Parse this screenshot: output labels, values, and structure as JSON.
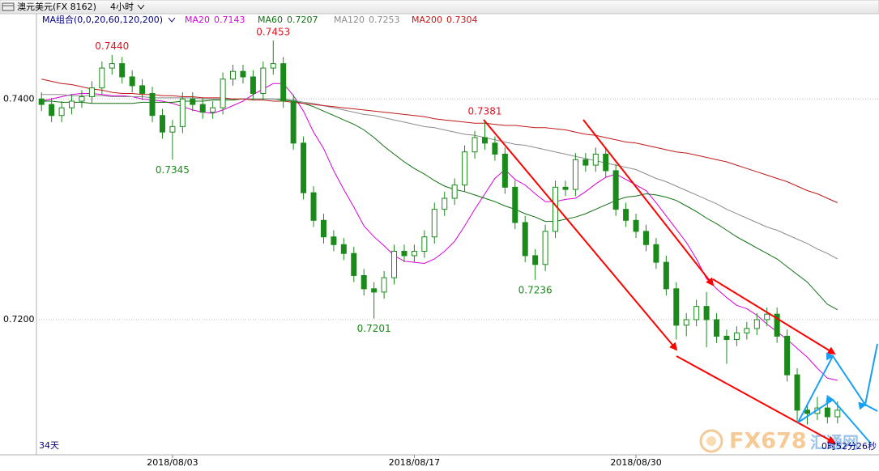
{
  "chart_data": {
    "type": "candlestick",
    "title": "澳元美元(FX 8162)",
    "period": "4小时",
    "ma_group": "MA组合(0,0,20,60,120,200)",
    "span_label": "34天",
    "countdown": "0时52分26秒",
    "watermark": {
      "brand": "FX678",
      "name": "汇通网"
    },
    "ylim": [
      0.7079,
      0.7464
    ],
    "yticks": [
      {
        "value": 0.74,
        "label": "0.7400"
      },
      {
        "value": 0.72,
        "label": "0.7200"
      }
    ],
    "grid": true,
    "up_color": "#1a8a1a",
    "down_color": "#1a8a1a",
    "high_label_color": "#e0141e",
    "low_label_color": "#1a8a1a",
    "categories": [
      null,
      null,
      null,
      null,
      null,
      null,
      null,
      null,
      null,
      null,
      null,
      null,
      null,
      "2018/08/03",
      null,
      null,
      null,
      null,
      null,
      null,
      null,
      null,
      null,
      null,
      null,
      null,
      null,
      null,
      null,
      null,
      null,
      null,
      null,
      null,
      null,
      null,
      null,
      "2018/08/17",
      null,
      null,
      null,
      null,
      null,
      null,
      null,
      null,
      null,
      null,
      null,
      null,
      null,
      null,
      null,
      null,
      null,
      null,
      null,
      null,
      null,
      "2018/08/30",
      null,
      null,
      null,
      null,
      null,
      null,
      null,
      null,
      null,
      null,
      null,
      null,
      null,
      null,
      null,
      null,
      null,
      null,
      null,
      null
    ],
    "open": [
      0.74,
      0.7395,
      0.7385,
      0.7392,
      0.7398,
      0.7402,
      0.741,
      0.7428,
      0.7432,
      0.742,
      0.7412,
      0.7405,
      0.7385,
      0.737,
      0.7375,
      0.74,
      0.7395,
      0.7388,
      0.7392,
      0.7418,
      0.7425,
      0.742,
      0.7405,
      0.7428,
      0.7432,
      0.7398,
      0.736,
      0.7315,
      0.729,
      0.7275,
      0.7268,
      0.726,
      0.724,
      0.7228,
      0.7225,
      0.7238,
      0.7262,
      0.7258,
      0.7262,
      0.7275,
      0.73,
      0.731,
      0.7322,
      0.7352,
      0.7365,
      0.736,
      0.735,
      0.732,
      0.7288,
      0.7258,
      0.725,
      0.728,
      0.732,
      0.7318,
      0.7345,
      0.734,
      0.735,
      0.7335,
      0.73,
      0.729,
      0.728,
      0.7268,
      0.7252,
      0.7228,
      0.7195,
      0.72,
      0.7212,
      0.72,
      0.7185,
      0.7182,
      0.7188,
      0.7192,
      0.72,
      0.7205,
      0.7185,
      0.715,
      0.7118,
      0.7115,
      0.712,
      0.7112
    ],
    "high": [
      0.7406,
      0.7401,
      0.7398,
      0.7404,
      0.7408,
      0.7416,
      0.7434,
      0.744,
      0.7438,
      0.7426,
      0.7418,
      0.7411,
      0.7391,
      0.7381,
      0.7406,
      0.7406,
      0.7401,
      0.7398,
      0.7424,
      0.7431,
      0.7431,
      0.7426,
      0.7434,
      0.7453,
      0.7438,
      0.7404,
      0.7366,
      0.7321,
      0.7296,
      0.7281,
      0.7274,
      0.7266,
      0.7246,
      0.7234,
      0.7244,
      0.7268,
      0.7268,
      0.7268,
      0.7281,
      0.7306,
      0.7316,
      0.7328,
      0.7358,
      0.7371,
      0.7381,
      0.7366,
      0.7356,
      0.7326,
      0.7294,
      0.7264,
      0.7286,
      0.7326,
      0.7326,
      0.7351,
      0.7351,
      0.7356,
      0.7356,
      0.7341,
      0.7306,
      0.7296,
      0.7286,
      0.7274,
      0.7258,
      0.7234,
      0.7206,
      0.7218,
      0.7225,
      0.7206,
      0.7191,
      0.7194,
      0.7198,
      0.7206,
      0.7211,
      0.7211,
      0.7191,
      0.7156,
      0.7124,
      0.713,
      0.7126,
      0.7126
    ],
    "low": [
      0.7389,
      0.7379,
      0.7379,
      0.7386,
      0.7392,
      0.7396,
      0.7404,
      0.7422,
      0.7414,
      0.7406,
      0.7399,
      0.7379,
      0.7364,
      0.7345,
      0.7369,
      0.7389,
      0.7382,
      0.7382,
      0.7386,
      0.7412,
      0.7414,
      0.7399,
      0.7399,
      0.7422,
      0.7392,
      0.7354,
      0.7309,
      0.7284,
      0.7269,
      0.7262,
      0.7254,
      0.7234,
      0.7222,
      0.7201,
      0.7219,
      0.7232,
      0.7252,
      0.7252,
      0.7256,
      0.7269,
      0.7294,
      0.7304,
      0.7316,
      0.7346,
      0.7354,
      0.7344,
      0.7314,
      0.7282,
      0.7252,
      0.7236,
      0.7244,
      0.7274,
      0.7312,
      0.7312,
      0.7334,
      0.7334,
      0.7329,
      0.7294,
      0.7284,
      0.7274,
      0.7262,
      0.7246,
      0.7222,
      0.7182,
      0.7185,
      0.7194,
      0.7175,
      0.7179,
      0.716,
      0.7176,
      0.7182,
      0.7186,
      0.7194,
      0.7179,
      0.7144,
      0.7108,
      0.7105,
      0.7109,
      0.7106,
      0.7106
    ],
    "close": [
      0.7395,
      0.7385,
      0.7392,
      0.7398,
      0.7402,
      0.741,
      0.7428,
      0.7432,
      0.742,
      0.7412,
      0.7405,
      0.7385,
      0.737,
      0.7375,
      0.74,
      0.7395,
      0.7388,
      0.7392,
      0.7418,
      0.7425,
      0.742,
      0.7405,
      0.7428,
      0.7432,
      0.7398,
      0.736,
      0.7315,
      0.729,
      0.7275,
      0.7268,
      0.726,
      0.724,
      0.7228,
      0.7225,
      0.7238,
      0.7262,
      0.7258,
      0.7262,
      0.7275,
      0.73,
      0.731,
      0.7322,
      0.7352,
      0.7365,
      0.736,
      0.735,
      0.732,
      0.7288,
      0.7258,
      0.725,
      0.728,
      0.732,
      0.7318,
      0.7345,
      0.734,
      0.735,
      0.7335,
      0.73,
      0.729,
      0.728,
      0.7268,
      0.7252,
      0.7228,
      0.7195,
      0.72,
      0.7212,
      0.72,
      0.7185,
      0.7182,
      0.7188,
      0.7192,
      0.72,
      0.7205,
      0.7185,
      0.715,
      0.7118,
      0.7115,
      0.712,
      0.7112,
      0.7118
    ],
    "high_labels": [
      null,
      null,
      null,
      null,
      null,
      null,
      null,
      "0.7440",
      null,
      null,
      null,
      null,
      null,
      null,
      null,
      null,
      null,
      null,
      null,
      null,
      null,
      null,
      null,
      "0.7453",
      null,
      null,
      null,
      null,
      null,
      null,
      null,
      null,
      null,
      null,
      null,
      null,
      null,
      null,
      null,
      null,
      null,
      null,
      null,
      null,
      "0.7381",
      null,
      null,
      null,
      null,
      null,
      null,
      null,
      null,
      null,
      null,
      null,
      null,
      null,
      null,
      null,
      null,
      null,
      null,
      null,
      null,
      null,
      null,
      null,
      null,
      null,
      null,
      null,
      null,
      null,
      null,
      null,
      null,
      null,
      null,
      null
    ],
    "low_labels": [
      null,
      null,
      null,
      null,
      null,
      null,
      null,
      null,
      null,
      null,
      null,
      null,
      null,
      "0.7345",
      null,
      null,
      null,
      null,
      null,
      null,
      null,
      null,
      null,
      null,
      null,
      null,
      null,
      null,
      null,
      null,
      null,
      null,
      null,
      "0.7201",
      null,
      null,
      null,
      null,
      null,
      null,
      null,
      null,
      null,
      null,
      null,
      null,
      null,
      null,
      null,
      "0.7236",
      null,
      null,
      null,
      null,
      null,
      null,
      null,
      null,
      null,
      null,
      null,
      null,
      null,
      null,
      null,
      null,
      null,
      null,
      null,
      null,
      null,
      null,
      null,
      null,
      null,
      null,
      null,
      null,
      null,
      null
    ],
    "series": [
      {
        "name": "MA20",
        "legend_value": 0.7143,
        "color": "#d800d8",
        "values": [
          0.7398,
          0.74,
          0.7402,
          0.7404,
          0.7405,
          0.7405,
          0.7404,
          0.7403,
          0.7403,
          0.7402,
          0.74,
          0.7399,
          0.7398,
          0.7396,
          0.7393,
          0.739,
          0.7388,
          0.7387,
          0.739,
          0.7394,
          0.7398,
          0.7404,
          0.7409,
          0.7414,
          0.7414,
          0.7403,
          0.7389,
          0.737,
          0.7355,
          0.7335,
          0.7318,
          0.7302,
          0.7285,
          0.7275,
          0.7267,
          0.7258,
          0.7253,
          0.7252,
          0.7251,
          0.7255,
          0.7262,
          0.7271,
          0.7285,
          0.73,
          0.7314,
          0.7328,
          0.7336,
          0.7327,
          0.7322,
          0.7314,
          0.7307,
          0.7307,
          0.7309,
          0.731,
          0.7316,
          0.7323,
          0.7329,
          0.7332,
          0.7327,
          0.7322,
          0.7317,
          0.7306,
          0.7294,
          0.7282,
          0.727,
          0.7255,
          0.7237,
          0.7228,
          0.722,
          0.7213,
          0.721,
          0.7204,
          0.7196,
          0.7189,
          0.7182,
          0.7174,
          0.7166,
          0.7156,
          0.7147,
          0.7145
        ]
      },
      {
        "name": "MA60",
        "legend_value": 0.7207,
        "color": "#107010",
        "values": [
          0.7398,
          0.7398,
          0.7397,
          0.7397,
          0.7397,
          0.7396,
          0.7396,
          0.7396,
          0.7396,
          0.7396,
          0.7397,
          0.7397,
          0.7397,
          0.7397,
          0.7398,
          0.7398,
          0.7398,
          0.7399,
          0.7399,
          0.7399,
          0.74,
          0.74,
          0.74,
          0.74,
          0.7399,
          0.7398,
          0.7396,
          0.7393,
          0.7389,
          0.7385,
          0.7381,
          0.7377,
          0.7372,
          0.7365,
          0.7357,
          0.735,
          0.7343,
          0.7337,
          0.7332,
          0.7326,
          0.7321,
          0.7318,
          0.7316,
          0.7313,
          0.731,
          0.7307,
          0.7303,
          0.73,
          0.7296,
          0.7293,
          0.7289,
          0.7289,
          0.7291,
          0.7293,
          0.7296,
          0.73,
          0.7304,
          0.7308,
          0.7311,
          0.7312,
          0.7314,
          0.7313,
          0.7311,
          0.7308,
          0.7303,
          0.7298,
          0.7292,
          0.7287,
          0.7281,
          0.7275,
          0.727,
          0.7265,
          0.726,
          0.7255,
          0.7248,
          0.7241,
          0.7234,
          0.7224,
          0.7214,
          0.7209
        ]
      },
      {
        "name": "MA120",
        "legend_value": 0.7253,
        "color": "#8c8c8c",
        "values": [
          0.7404,
          0.7404,
          0.7404,
          0.7403,
          0.7403,
          0.7403,
          0.7403,
          0.7402,
          0.7402,
          0.7402,
          0.7402,
          0.7401,
          0.7401,
          0.7401,
          0.7401,
          0.7401,
          0.74,
          0.74,
          0.74,
          0.74,
          0.74,
          0.74,
          0.74,
          0.74,
          0.74,
          0.7399,
          0.7397,
          0.7396,
          0.7394,
          0.7392,
          0.739,
          0.7388,
          0.7386,
          0.7385,
          0.7383,
          0.7381,
          0.7379,
          0.7377,
          0.7375,
          0.7374,
          0.7372,
          0.737,
          0.7368,
          0.7367,
          0.7365,
          0.7363,
          0.7361,
          0.7359,
          0.7358,
          0.7356,
          0.7354,
          0.7352,
          0.735,
          0.7348,
          0.7346,
          0.7344,
          0.7342,
          0.734,
          0.7338,
          0.7336,
          0.7332,
          0.7328,
          0.7325,
          0.7321,
          0.7317,
          0.7313,
          0.7309,
          0.7305,
          0.73,
          0.7296,
          0.7292,
          0.7288,
          0.7284,
          0.7281,
          0.7277,
          0.7273,
          0.7269,
          0.7264,
          0.726,
          0.7255
        ]
      },
      {
        "name": "MA200",
        "legend_value": 0.7304,
        "color": "#c01818",
        "values": [
          0.7418,
          0.7416,
          0.7414,
          0.7413,
          0.7411,
          0.7409,
          0.7408,
          0.7406,
          0.7405,
          0.7405,
          0.7404,
          0.7404,
          0.7403,
          0.7403,
          0.7402,
          0.7402,
          0.7401,
          0.7401,
          0.7401,
          0.74,
          0.74,
          0.7399,
          0.7399,
          0.7398,
          0.7398,
          0.7397,
          0.7396,
          0.7395,
          0.7394,
          0.7393,
          0.7392,
          0.7391,
          0.739,
          0.7389,
          0.7388,
          0.7387,
          0.7386,
          0.7385,
          0.7384,
          0.7382,
          0.7381,
          0.738,
          0.7379,
          0.7378,
          0.7378,
          0.7377,
          0.7376,
          0.7376,
          0.7375,
          0.7374,
          0.7374,
          0.7373,
          0.7372,
          0.737,
          0.7368,
          0.7367,
          0.7365,
          0.7363,
          0.7361,
          0.736,
          0.7358,
          0.7356,
          0.7354,
          0.7352,
          0.7351,
          0.7349,
          0.7347,
          0.7345,
          0.7343,
          0.734,
          0.7337,
          0.7334,
          0.7331,
          0.7328,
          0.7325,
          0.7321,
          0.7317,
          0.7314,
          0.731,
          0.7306
        ]
      }
    ]
  }
}
